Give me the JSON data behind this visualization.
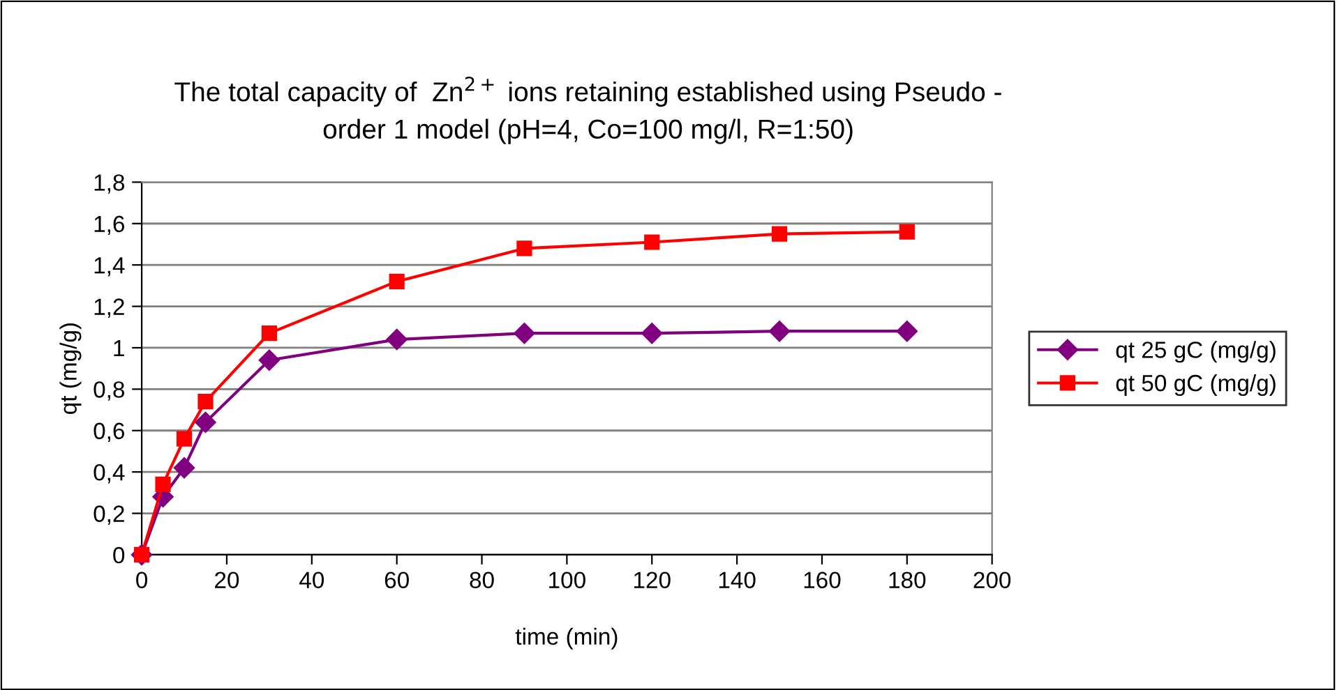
{
  "chart_data": {
    "type": "line",
    "title": "The total capacity of  Zn$^{2+}$ ions retaining established using Pseudo -\norder 1 model (pH=4, Co=100 mg/l, R=1:50)",
    "xlabel": "time (min)",
    "ylabel": "qt (mg/g)",
    "x": [
      0,
      5,
      10,
      15,
      30,
      60,
      90,
      120,
      150,
      180
    ],
    "series": [
      {
        "name": "qt 25 gC (mg/g)",
        "color": "#800080",
        "marker": "diamond",
        "values": [
          0,
          0.28,
          0.42,
          0.64,
          0.94,
          1.04,
          1.07,
          1.07,
          1.08,
          1.08
        ]
      },
      {
        "name": "qt 50 gC (mg/g)",
        "color": "#ff0000",
        "marker": "square",
        "values": [
          0,
          0.34,
          0.56,
          0.74,
          1.07,
          1.32,
          1.48,
          1.51,
          1.55,
          1.56
        ]
      }
    ],
    "xlim": [
      0,
      200
    ],
    "xticks": [
      0,
      20,
      40,
      60,
      80,
      100,
      120,
      140,
      160,
      180,
      200
    ],
    "ylim": [
      0,
      1.8
    ],
    "yticks": [
      0,
      {
        "value": 0.2,
        "label": "0,2"
      },
      {
        "value": 0.4,
        "label": "0,4"
      },
      {
        "value": 0.6,
        "label": "0,6"
      },
      {
        "value": 0.8,
        "label": "0,8"
      },
      1,
      {
        "value": 1.2,
        "label": "1,2"
      },
      {
        "value": 1.4,
        "label": "1,4"
      },
      {
        "value": 1.6,
        "label": "1,6"
      },
      {
        "value": 1.8,
        "label": "1,8"
      }
    ],
    "grid": "y",
    "legend": "right",
    "line_style": "solid"
  }
}
